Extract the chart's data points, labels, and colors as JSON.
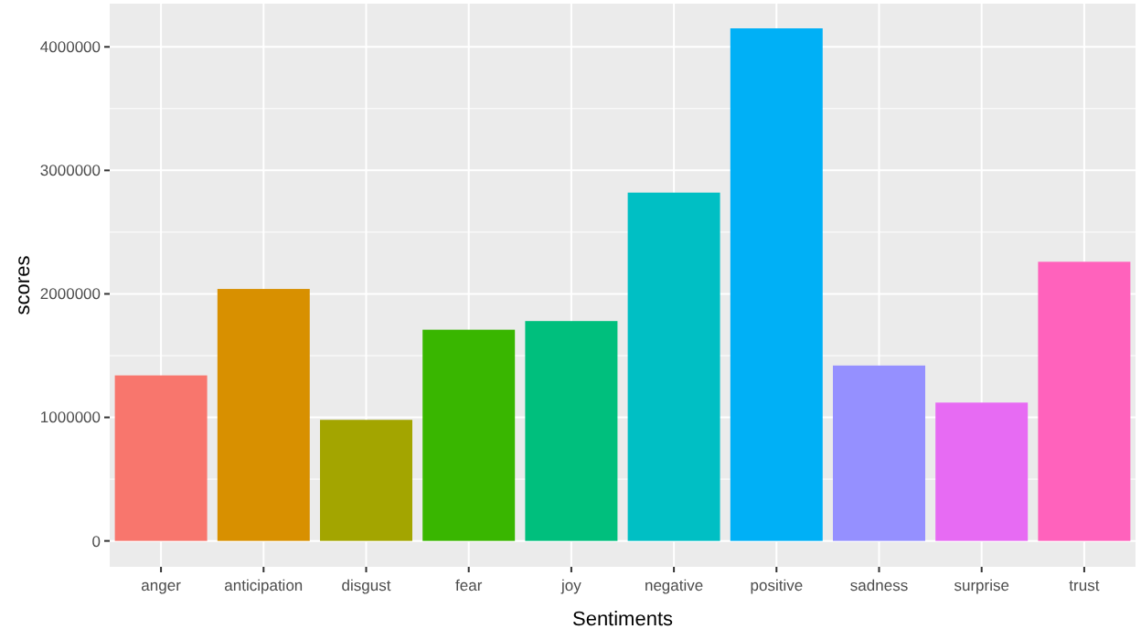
{
  "chart_data": {
    "type": "bar",
    "xlabel": "Sentiments",
    "ylabel": "scores",
    "categories": [
      "anger",
      "anticipation",
      "disgust",
      "fear",
      "joy",
      "negative",
      "positive",
      "sadness",
      "surprise",
      "trust"
    ],
    "values": [
      1340000,
      2040000,
      980000,
      1710000,
      1780000,
      2820000,
      4150000,
      1420000,
      1120000,
      2260000
    ],
    "colors": [
      "#f8766d",
      "#d89000",
      "#a3a500",
      "#39b600",
      "#00bf7d",
      "#00bfc4",
      "#00b0f6",
      "#9590ff",
      "#e76bf3",
      "#ff62bc"
    ],
    "ylim": [
      -210000,
      4350000
    ],
    "yticks": [
      0,
      1000000,
      2000000,
      3000000,
      4000000
    ],
    "grid": true
  }
}
